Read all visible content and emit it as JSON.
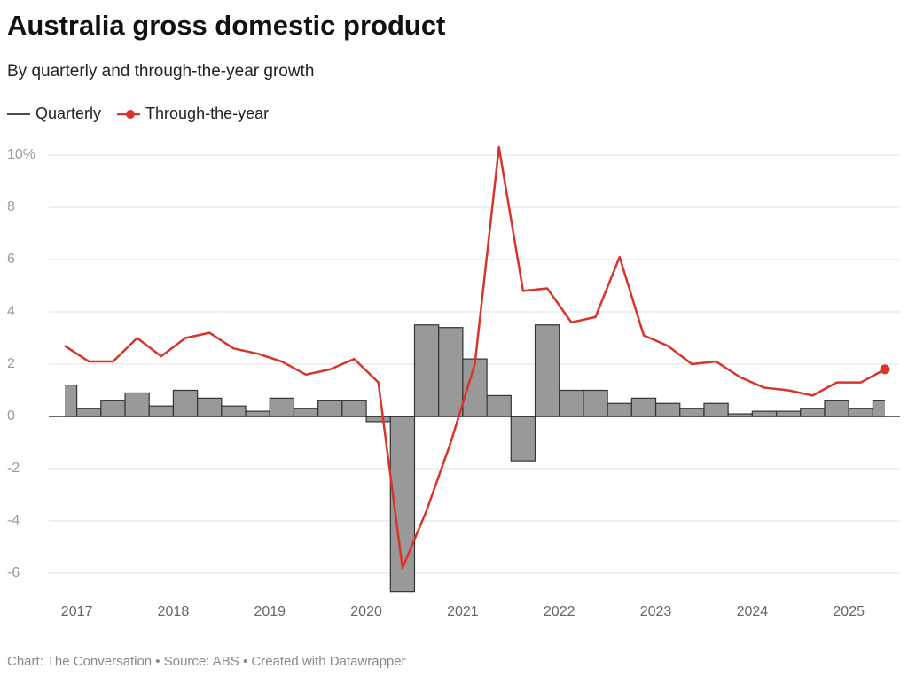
{
  "chart_data": {
    "type": "line",
    "title": "Australia gross domestic product",
    "subtitle": "By quarterly and through-the-year growth",
    "footer": "Chart: The Conversation • Source: ABS • Created with Datawrapper",
    "x": [
      2016.875,
      2017.125,
      2017.375,
      2017.625,
      2017.875,
      2018.125,
      2018.375,
      2018.625,
      2018.875,
      2019.125,
      2019.375,
      2019.625,
      2019.875,
      2020.125,
      2020.375,
      2020.625,
      2020.875,
      2021.125,
      2021.375,
      2021.625,
      2021.875,
      2022.125,
      2022.375,
      2022.625,
      2022.875,
      2023.125,
      2023.375,
      2023.625,
      2023.875,
      2024.125,
      2024.375,
      2024.625,
      2024.875,
      2025.125,
      2025.375
    ],
    "series": [
      {
        "name": "Quarterly",
        "color": "#333333",
        "fill": "#999999",
        "style": "step-bar",
        "values": [
          1.2,
          0.3,
          0.6,
          0.9,
          0.4,
          1.0,
          0.7,
          0.4,
          0.2,
          0.7,
          0.3,
          0.6,
          0.6,
          -0.2,
          -6.7,
          3.5,
          3.4,
          2.2,
          0.8,
          -1.7,
          3.5,
          1.0,
          1.0,
          0.5,
          0.7,
          0.5,
          0.3,
          0.5,
          0.1,
          0.2,
          0.2,
          0.3,
          0.6,
          0.3,
          0.6
        ]
      },
      {
        "name": "Through-the-year",
        "color": "#d8352a",
        "style": "line",
        "values": [
          2.7,
          2.1,
          2.1,
          3.0,
          2.3,
          3.0,
          3.2,
          2.6,
          2.4,
          2.1,
          1.6,
          1.8,
          2.2,
          1.3,
          -5.8,
          -3.6,
          -1.0,
          2.0,
          10.3,
          4.8,
          4.9,
          3.6,
          3.8,
          6.1,
          3.1,
          2.7,
          2.0,
          2.1,
          1.5,
          1.1,
          1.0,
          0.8,
          1.3,
          1.3,
          1.8
        ]
      }
    ],
    "xlim": [
      2016.875,
      2025.375
    ],
    "xticks": [
      2017,
      2018,
      2019,
      2020,
      2021,
      2022,
      2023,
      2024,
      2025
    ],
    "ylim": [
      -6.8,
      10.2
    ],
    "yticks": [
      {
        "value": 10,
        "label": "10%"
      },
      8,
      6,
      4,
      2,
      0,
      -2,
      -4,
      -6
    ],
    "grid": true
  }
}
